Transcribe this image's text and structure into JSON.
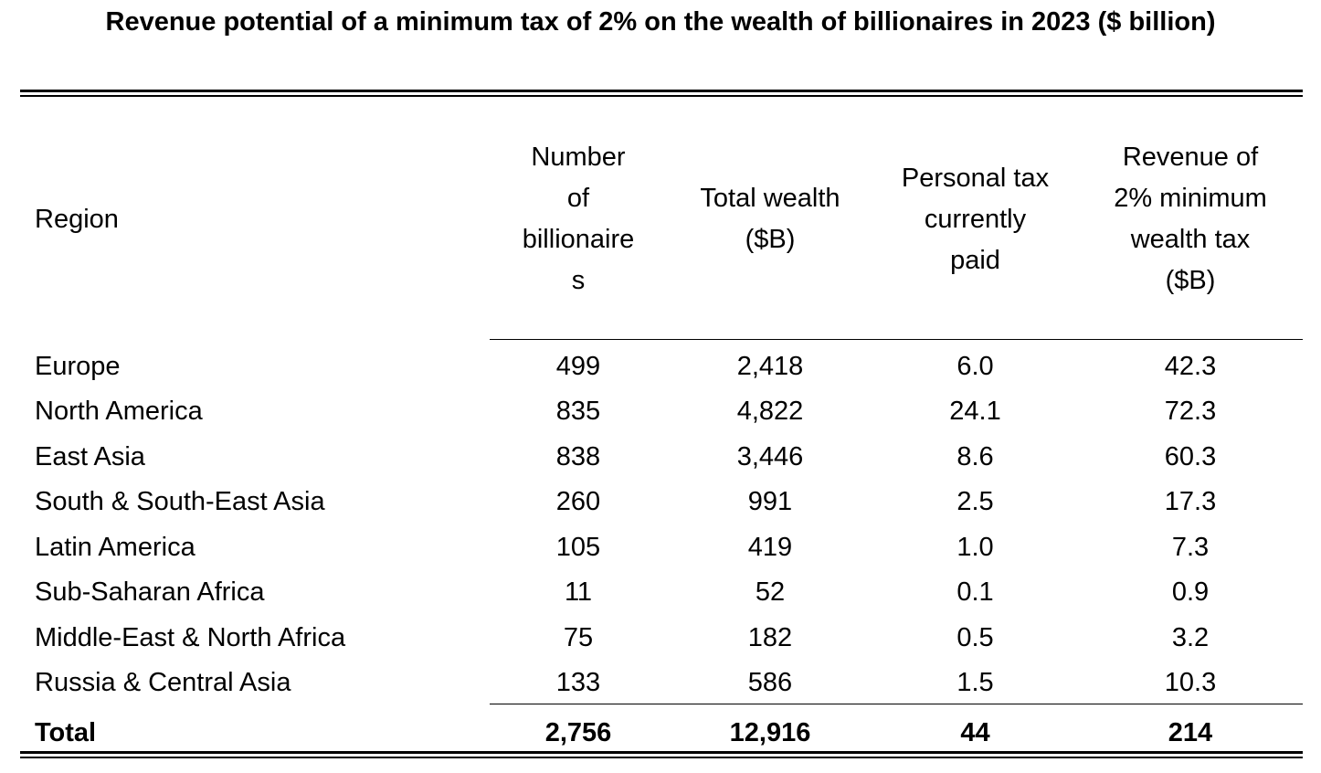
{
  "title": "Revenue potential of a minimum tax of 2% on the wealth of billionaires in 2023 ($ billion)",
  "headers": {
    "region": "Region",
    "num_billionaires": [
      "Number",
      "of",
      "billionaire",
      "s"
    ],
    "total_wealth": [
      "Total wealth",
      "($B)"
    ],
    "personal_tax": [
      "Personal tax",
      "currently",
      "paid"
    ],
    "revenue": [
      "Revenue of",
      "2% minimum",
      "wealth tax",
      "($B)"
    ]
  },
  "rows": [
    {
      "region": "Europe",
      "num": "499",
      "wealth": "2,418",
      "tax": "6.0",
      "revenue": "42.3"
    },
    {
      "region": "North America",
      "num": "835",
      "wealth": "4,822",
      "tax": "24.1",
      "revenue": "72.3"
    },
    {
      "region": "East Asia",
      "num": "838",
      "wealth": "3,446",
      "tax": "8.6",
      "revenue": "60.3"
    },
    {
      "region": "South & South-East Asia",
      "num": "260",
      "wealth": "991",
      "tax": "2.5",
      "revenue": "17.3"
    },
    {
      "region": "Latin America",
      "num": "105",
      "wealth": "419",
      "tax": "1.0",
      "revenue": "7.3"
    },
    {
      "region": "Sub-Saharan Africa",
      "num": "11",
      "wealth": "52",
      "tax": "0.1",
      "revenue": "0.9"
    },
    {
      "region": "Middle-East & North Africa",
      "num": "75",
      "wealth": "182",
      "tax": "0.5",
      "revenue": "3.2"
    },
    {
      "region": "Russia & Central Asia",
      "num": "133",
      "wealth": "586",
      "tax": "1.5",
      "revenue": "10.3"
    }
  ],
  "total": {
    "region": "Total",
    "num": "2,756",
    "wealth": "12,916",
    "tax": "44",
    "revenue": "214"
  }
}
